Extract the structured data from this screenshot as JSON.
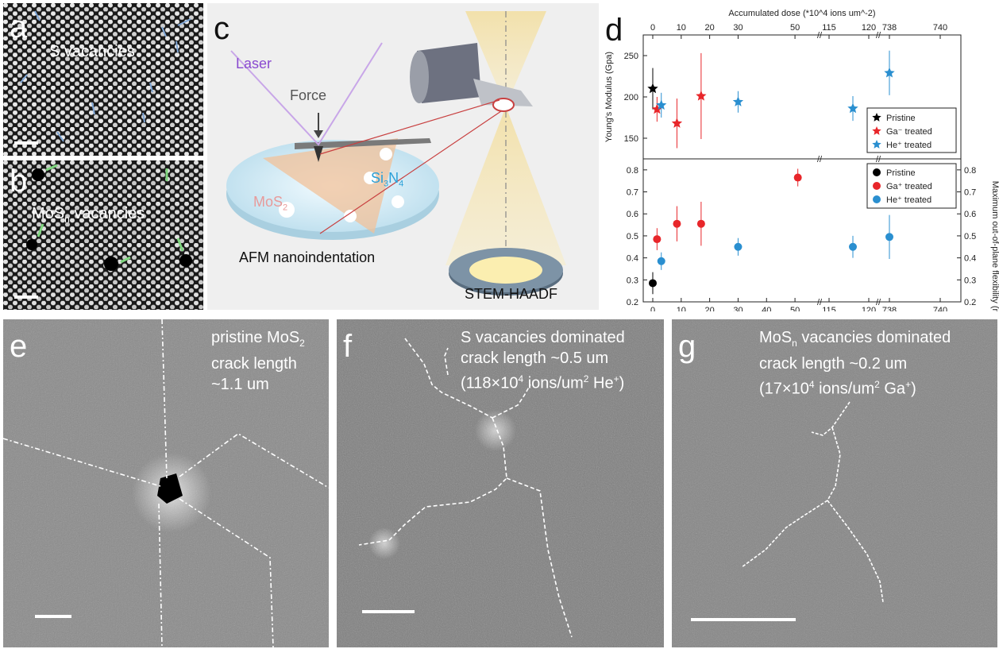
{
  "panels": {
    "a": {
      "label": "a",
      "text": "S vacancies"
    },
    "b": {
      "label": "b",
      "text": "MoS",
      "text_sub": "n",
      "text_tail": " vacancies"
    },
    "c": {
      "label": "c",
      "laser": "Laser",
      "force": "Force",
      "substrate": "Si",
      "substrate_sub1": "3",
      "substrate_mid": "N",
      "substrate_sub2": "4",
      "mos2": "MoS",
      "mos2_sub": "2",
      "afm": "AFM nanoindentation",
      "stem": "STEM-HAADF"
    },
    "d": {
      "label": "d"
    },
    "e": {
      "label": "e",
      "line1": "pristine MoS",
      "line1_sub": "2",
      "line2": "crack length",
      "line3": "~1.1 um"
    },
    "f": {
      "label": "f",
      "line1": "S vacancies dominated",
      "line2": "crack length ~0.5 um",
      "line3_a": "(118×10",
      "line3_sup1": "4",
      "line3_b": " ions/um",
      "line3_sup2": "2",
      "line3_c": " He",
      "line3_sup3": "+",
      "line3_d": ")"
    },
    "g": {
      "label": "g",
      "line1_a": "MoS",
      "line1_sub": "n",
      "line1_b": " vacancies dominated",
      "line2": "crack length ~0.2 um",
      "line3_a": "(17×10",
      "line3_sup1": "4",
      "line3_b": " ions/um",
      "line3_sup2": "2",
      "line3_c": "  Ga",
      "line3_sup3": "+",
      "line3_d": ")"
    }
  },
  "chart_data": [
    {
      "type": "scatter",
      "title": "",
      "xlabel_top": "Accumulated dose (*10^4 ions um^-2)",
      "ylabel": "Young's Modulus (Gpa)",
      "ylim": [
        125,
        275
      ],
      "yticks": [
        "150",
        "200",
        "250"
      ],
      "xticks_top": [
        "0",
        "10",
        "20",
        "30",
        "50",
        "115",
        "120",
        "738",
        "740"
      ],
      "legend_position": "right",
      "series": [
        {
          "name": "Pristine",
          "color": "#000000",
          "points": [
            {
              "x": 0,
              "y": 210,
              "err": 25
            }
          ]
        },
        {
          "name": "Ga⁻ treated",
          "color": "#e8262a",
          "points": [
            {
              "x": 1.5,
              "y": 185,
              "err": 15
            },
            {
              "x": 8.5,
              "y": 168,
              "err": 30
            },
            {
              "x": 17,
              "y": 201,
              "err": 52
            }
          ]
        },
        {
          "name": "He⁺ treated",
          "color": "#2a8fd0",
          "points": [
            {
              "x": 3,
              "y": 190,
              "err": 15
            },
            {
              "x": 30,
              "y": 194,
              "err": 13
            },
            {
              "x": 118,
              "y": 186,
              "err": 15
            },
            {
              "x": 738,
              "y": 229,
              "err": 27
            }
          ]
        }
      ]
    },
    {
      "type": "scatter",
      "title": "",
      "xlabel": "Accumulated dose (*10^4 ions um^-2)",
      "ylabel_right": "Maximum out-of-plane flexibility (m/N)",
      "ylim": [
        0.2,
        0.85
      ],
      "yticks": [
        "0.2",
        "0.3",
        "0.4",
        "0.5",
        "0.6",
        "0.7",
        "0.8"
      ],
      "xticks": [
        "0",
        "10",
        "20",
        "30",
        "40",
        "50",
        "115",
        "120",
        "738",
        "740"
      ],
      "legend_position": "top-right",
      "series": [
        {
          "name": "Pristine",
          "color": "#000000",
          "points": [
            {
              "x": 0,
              "y": 0.285,
              "err": 0.05
            }
          ]
        },
        {
          "name": "Ga⁺ treated",
          "color": "#e8262a",
          "points": [
            {
              "x": 1.5,
              "y": 0.485,
              "err": 0.05
            },
            {
              "x": 8.5,
              "y": 0.555,
              "err": 0.08
            },
            {
              "x": 17,
              "y": 0.555,
              "err": 0.1
            },
            {
              "x": 51,
              "y": 0.765,
              "err": 0.04
            }
          ]
        },
        {
          "name": "He⁺ treated",
          "color": "#2a8fd0",
          "points": [
            {
              "x": 3,
              "y": 0.385,
              "err": 0.04
            },
            {
              "x": 30,
              "y": 0.45,
              "err": 0.04
            },
            {
              "x": 118,
              "y": 0.45,
              "err": 0.05
            },
            {
              "x": 738,
              "y": 0.495,
              "err": 0.1
            }
          ]
        }
      ]
    }
  ]
}
